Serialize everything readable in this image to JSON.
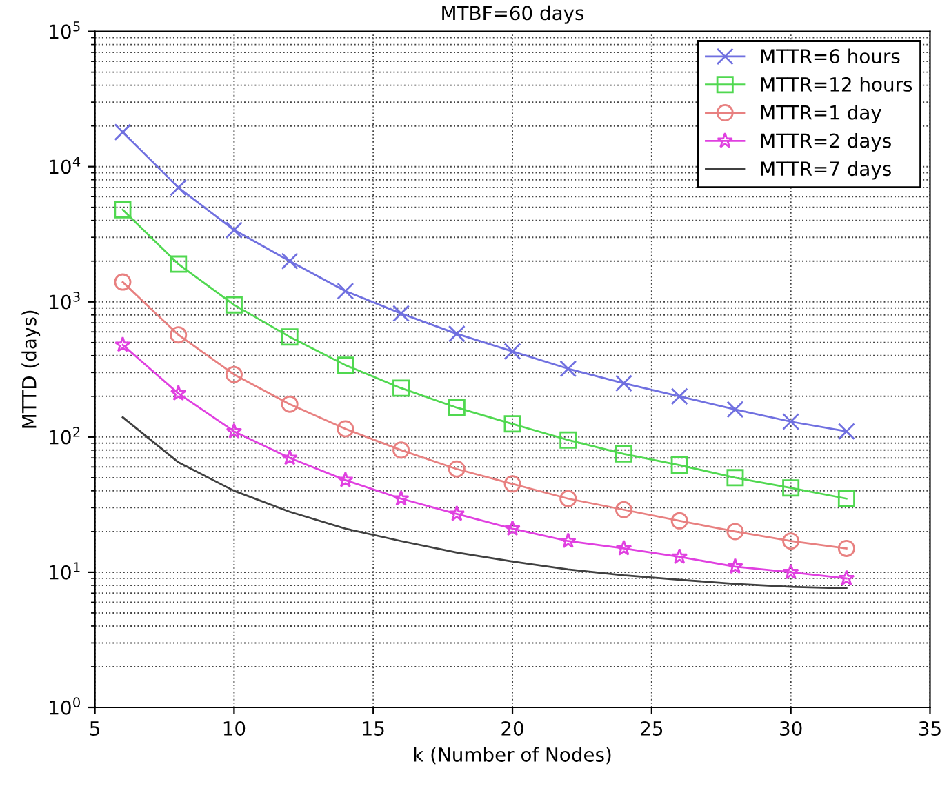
{
  "chart_data": {
    "type": "line",
    "title": "MTBF=60 days",
    "xlabel": "k (Number of Nodes)",
    "ylabel": "MTTD (days)",
    "x": [
      6,
      8,
      10,
      12,
      14,
      16,
      18,
      20,
      22,
      24,
      26,
      28,
      30,
      32
    ],
    "series": [
      {
        "name": "MTTR=6 hours",
        "color": "#7070e0",
        "marker": "cross",
        "values": [
          18000,
          7000,
          3400,
          2000,
          1200,
          820,
          580,
          430,
          320,
          250,
          200,
          160,
          130,
          110
        ]
      },
      {
        "name": "MTTR=12 hours",
        "color": "#50d850",
        "marker": "square",
        "values": [
          4800,
          1900,
          950,
          550,
          340,
          230,
          165,
          125,
          95,
          75,
          62,
          50,
          42,
          35
        ]
      },
      {
        "name": "MTTR=1 day",
        "color": "#e88080",
        "marker": "circle",
        "values": [
          1400,
          570,
          290,
          175,
          115,
          80,
          58,
          45,
          35,
          29,
          24,
          20,
          17,
          15
        ]
      },
      {
        "name": "MTTR=2 days",
        "color": "#e040e0",
        "marker": "star",
        "values": [
          480,
          210,
          110,
          70,
          48,
          35,
          27,
          21,
          17,
          15,
          13,
          11,
          10,
          9
        ]
      },
      {
        "name": "MTTR=7 days",
        "color": "#404040",
        "marker": "none",
        "values": [
          140,
          65,
          40,
          28,
          21,
          17,
          14,
          12,
          10.5,
          9.5,
          8.8,
          8.2,
          7.8,
          7.6
        ]
      }
    ],
    "log": "y",
    "xlim": [
      5,
      35
    ],
    "xticks": [
      5,
      10,
      15,
      20,
      25,
      30,
      35
    ],
    "ylim": [
      1,
      100000
    ],
    "yticks": [
      {
        "value": 1,
        "label": "10$^{0}$"
      },
      {
        "value": 10,
        "label": "10$^{1}$"
      },
      {
        "value": 100,
        "label": "10$^{2}$"
      },
      {
        "value": 1000,
        "label": "10$^{3}$"
      },
      {
        "value": 10000,
        "label": "10$^{4}$"
      },
      {
        "value": 100000,
        "label": "10$^{5}$"
      }
    ],
    "grid": true,
    "line_style": "solid",
    "legend": "top right"
  }
}
